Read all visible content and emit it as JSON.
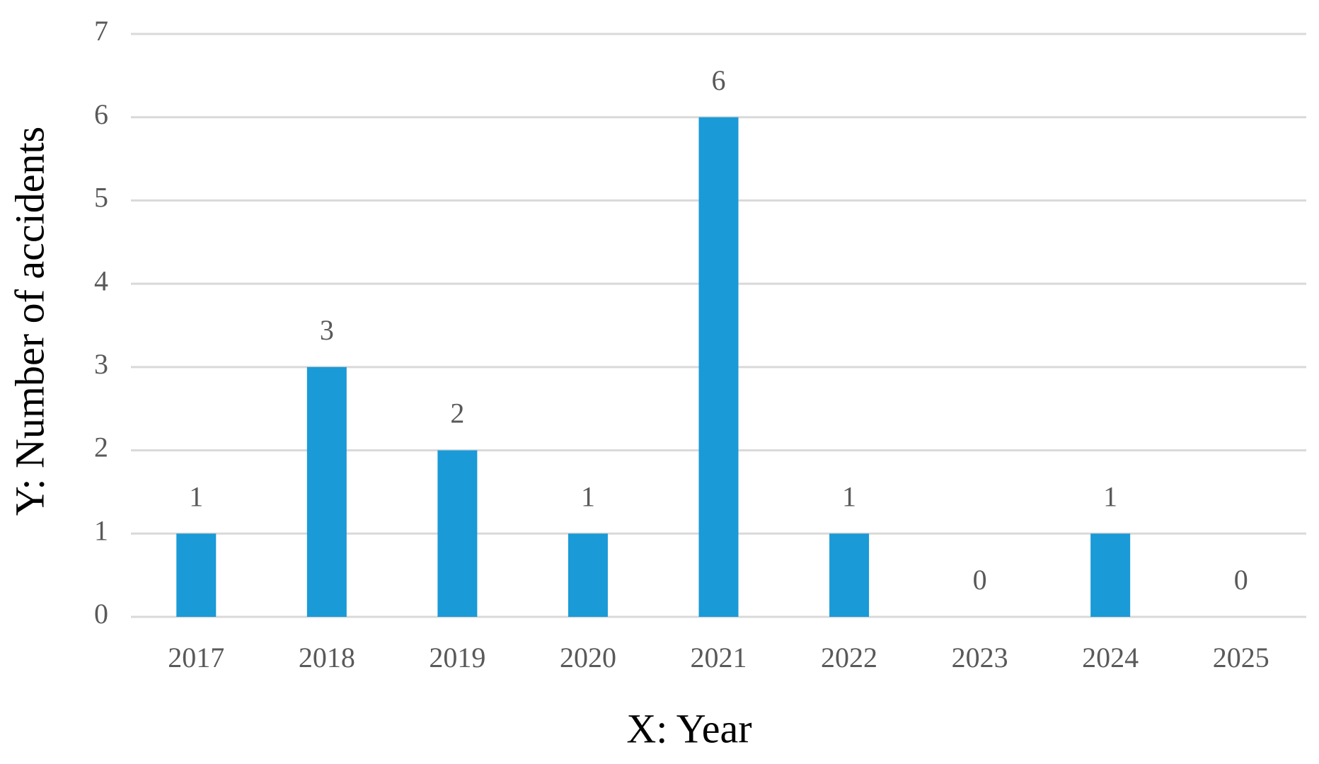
{
  "chart_data": {
    "type": "bar",
    "x_label": "X:  Year",
    "y_label": "Y:  Number of accidents",
    "categories": [
      "2017",
      "2018",
      "2019",
      "2020",
      "2021",
      "2022",
      "2023",
      "2024",
      "2025"
    ],
    "values": [
      1,
      3,
      2,
      1,
      6,
      1,
      0,
      1,
      0
    ],
    "color": "#1a9ad6",
    "ylim": [
      0,
      7
    ],
    "yticks": [
      0,
      1,
      2,
      3,
      4,
      5,
      6,
      7
    ],
    "grid": true,
    "show_value_labels": true
  }
}
